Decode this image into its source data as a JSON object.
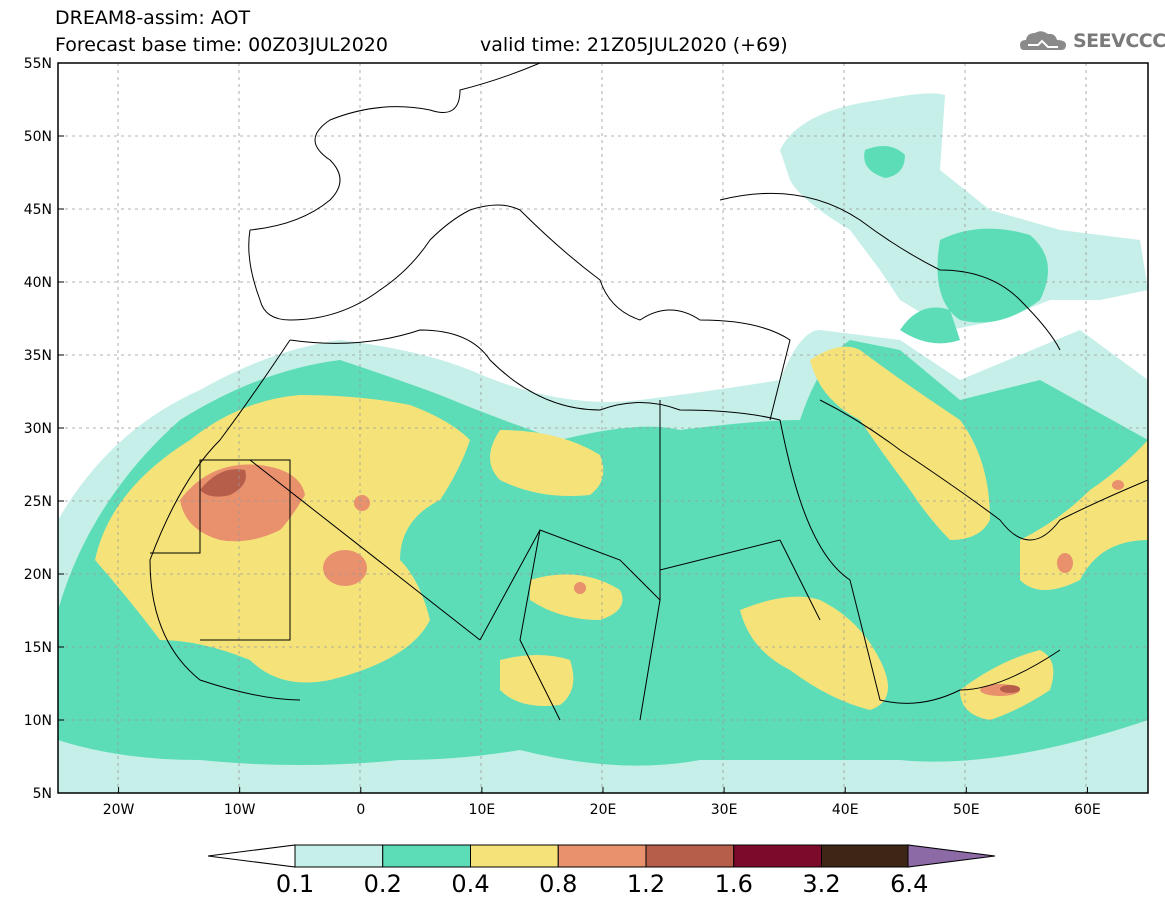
{
  "header": {
    "title": "DREAM8-assim: AOT",
    "base_time": "Forecast base time: 00Z03JUL2020",
    "valid_time": "valid time: 21Z05JUL2020 (+69)",
    "logo_text": "SEEVCCC"
  },
  "map": {
    "region": "North Africa, Mediterranean, Middle East",
    "lon_range": [
      -25,
      65
    ],
    "lat_range": [
      5,
      55
    ],
    "lat_labels": [
      "55N",
      "50N",
      "45N",
      "40N",
      "35N",
      "30N",
      "25N",
      "20N",
      "15N",
      "10N",
      "5N"
    ],
    "lon_labels": [
      "20W",
      "10W",
      "0",
      "10E",
      "20E",
      "30E",
      "40E",
      "50E",
      "60E"
    ],
    "grid": "dashed"
  },
  "colorbar": {
    "labels": [
      "0.1",
      "0.2",
      "0.4",
      "0.8",
      "1.2",
      "1.6",
      "3.2",
      "6.4"
    ],
    "colors": [
      "#ffffff",
      "#c5efe8",
      "#5cddb8",
      "#f5e37a",
      "#e9906d",
      "#b75e4b",
      "#7c0b2b",
      "#3e2616",
      "#8b6aa6"
    ]
  }
}
